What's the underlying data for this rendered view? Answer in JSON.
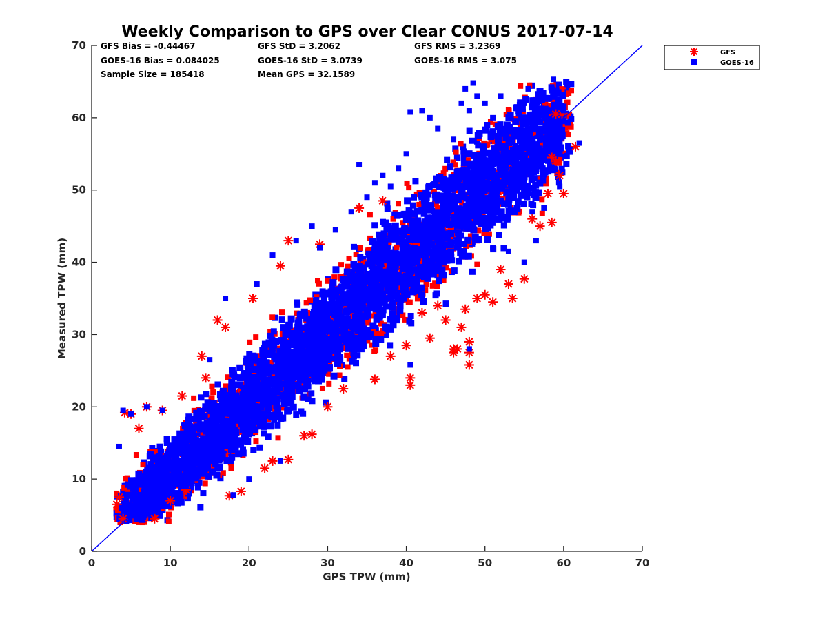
{
  "chart_data": {
    "type": "scatter",
    "title": "Weekly Comparison to GPS over Clear CONUS 2017-07-14",
    "xlabel": "GPS TPW (mm)",
    "ylabel": "Measured TPW (mm)",
    "xlim": [
      0,
      70
    ],
    "ylim": [
      0,
      70
    ],
    "xticks": [
      "0",
      "10",
      "20",
      "30",
      "40",
      "50",
      "60",
      "70"
    ],
    "yticks": [
      "0",
      "10",
      "20",
      "30",
      "40",
      "50",
      "60",
      "70"
    ],
    "grid": false,
    "legend_position": "outside-top-right",
    "reference_line": {
      "x": [
        0,
        70
      ],
      "y": [
        0,
        70
      ],
      "color": "#0000ff"
    },
    "stats": [
      [
        "GFS Bias = -0.44467",
        "GFS StD = 3.2062",
        "GFS RMS = 3.2369"
      ],
      [
        "GOES-16 Bias = 0.084025",
        "GOES-16 StD = 3.0739",
        "GOES-16 RMS = 3.075"
      ],
      [
        "Sample Size = 185418",
        "Mean GPS = 32.1589",
        ""
      ]
    ],
    "series": [
      {
        "name": "GFS",
        "color": "#ff0000",
        "marker": "asterisk",
        "points": [
          [
            3.2,
            6.5
          ],
          [
            3.5,
            7.5
          ],
          [
            4,
            4.5
          ],
          [
            4.2,
            19.2
          ],
          [
            5,
            19
          ],
          [
            6,
            17
          ],
          [
            7,
            20
          ],
          [
            8,
            4.5
          ],
          [
            9,
            19.5
          ],
          [
            10,
            7
          ],
          [
            11.5,
            21.5
          ],
          [
            12,
            8.5
          ],
          [
            14,
            27
          ],
          [
            14.5,
            24
          ],
          [
            16,
            32
          ],
          [
            17,
            31
          ],
          [
            17.5,
            7.7
          ],
          [
            19,
            8.3
          ],
          [
            20.5,
            35
          ],
          [
            22,
            11.5
          ],
          [
            23,
            12.5
          ],
          [
            24,
            39.5
          ],
          [
            25,
            43
          ],
          [
            25,
            12.7
          ],
          [
            27,
            16
          ],
          [
            28,
            16.2
          ],
          [
            29,
            42.5
          ],
          [
            30,
            20
          ],
          [
            32,
            22.5
          ],
          [
            34,
            47.5
          ],
          [
            36,
            23.8
          ],
          [
            37,
            48.5
          ],
          [
            38,
            27
          ],
          [
            40,
            28.5
          ],
          [
            40.5,
            24
          ],
          [
            40.5,
            23
          ],
          [
            42,
            33
          ],
          [
            43,
            29.5
          ],
          [
            44,
            34
          ],
          [
            45,
            32
          ],
          [
            46,
            28
          ],
          [
            46,
            27.5
          ],
          [
            46.5,
            28
          ],
          [
            47,
            31
          ],
          [
            47.5,
            33.5
          ],
          [
            48,
            29
          ],
          [
            48,
            27.5
          ],
          [
            48,
            25.8
          ],
          [
            49,
            35
          ],
          [
            50,
            35.5
          ],
          [
            51,
            34.5
          ],
          [
            52,
            39
          ],
          [
            53,
            37
          ],
          [
            53.5,
            35
          ],
          [
            55,
            37.7
          ],
          [
            56,
            46
          ],
          [
            57,
            45
          ],
          [
            58,
            49.5
          ],
          [
            58.5,
            45.5
          ],
          [
            59,
            60.5
          ],
          [
            59,
            54
          ],
          [
            59.5,
            52
          ],
          [
            59.8,
            60.5
          ],
          [
            60,
            49.5
          ],
          [
            61.5,
            56
          ],
          [
            58.5,
            54.5
          ]
        ]
      },
      {
        "name": "GOES-16",
        "color": "#0000ff",
        "marker": "square",
        "points": [
          [
            3.5,
            14.5
          ],
          [
            3.8,
            6
          ],
          [
            4,
            19.5
          ],
          [
            5,
            19
          ],
          [
            7,
            20
          ],
          [
            9,
            19.5
          ],
          [
            12,
            9
          ],
          [
            15,
            26.5
          ],
          [
            17,
            35
          ],
          [
            18,
            7.8
          ],
          [
            20,
            10
          ],
          [
            21,
            37
          ],
          [
            23,
            41
          ],
          [
            24,
            12.5
          ],
          [
            26,
            43
          ],
          [
            28,
            45
          ],
          [
            29,
            42
          ],
          [
            31,
            44.5
          ],
          [
            33,
            47
          ],
          [
            34,
            53.5
          ],
          [
            35,
            49
          ],
          [
            36,
            51
          ],
          [
            37,
            52
          ],
          [
            38,
            50.5
          ],
          [
            39,
            53
          ],
          [
            40,
            55
          ],
          [
            40.5,
            60.8
          ],
          [
            41,
            45
          ],
          [
            40.5,
            25.8
          ],
          [
            42,
            61
          ],
          [
            43,
            60
          ],
          [
            44,
            58.5
          ],
          [
            45,
            49
          ],
          [
            46,
            57
          ],
          [
            47,
            62
          ],
          [
            47.5,
            64
          ],
          [
            48,
            61
          ],
          [
            48.5,
            64.8
          ],
          [
            48,
            28
          ],
          [
            49,
            63
          ],
          [
            50,
            62
          ],
          [
            51,
            60
          ],
          [
            52,
            63
          ],
          [
            53,
            57
          ],
          [
            54,
            61.5
          ],
          [
            55,
            62
          ],
          [
            55.5,
            64
          ],
          [
            56,
            47
          ],
          [
            57,
            57
          ],
          [
            57.5,
            47.5
          ],
          [
            58,
            54
          ],
          [
            58.7,
            65.3
          ],
          [
            59,
            56
          ],
          [
            59.5,
            50.5
          ],
          [
            60,
            61
          ],
          [
            61,
            59.8
          ],
          [
            62,
            56.5
          ],
          [
            56.5,
            43
          ],
          [
            55,
            40
          ],
          [
            53,
            41.5
          ],
          [
            51,
            42
          ]
        ]
      }
    ],
    "point_cloud": {
      "note": "dense band following y = x",
      "x_range": [
        3,
        61
      ],
      "band_center_offset": 0.5
    }
  }
}
